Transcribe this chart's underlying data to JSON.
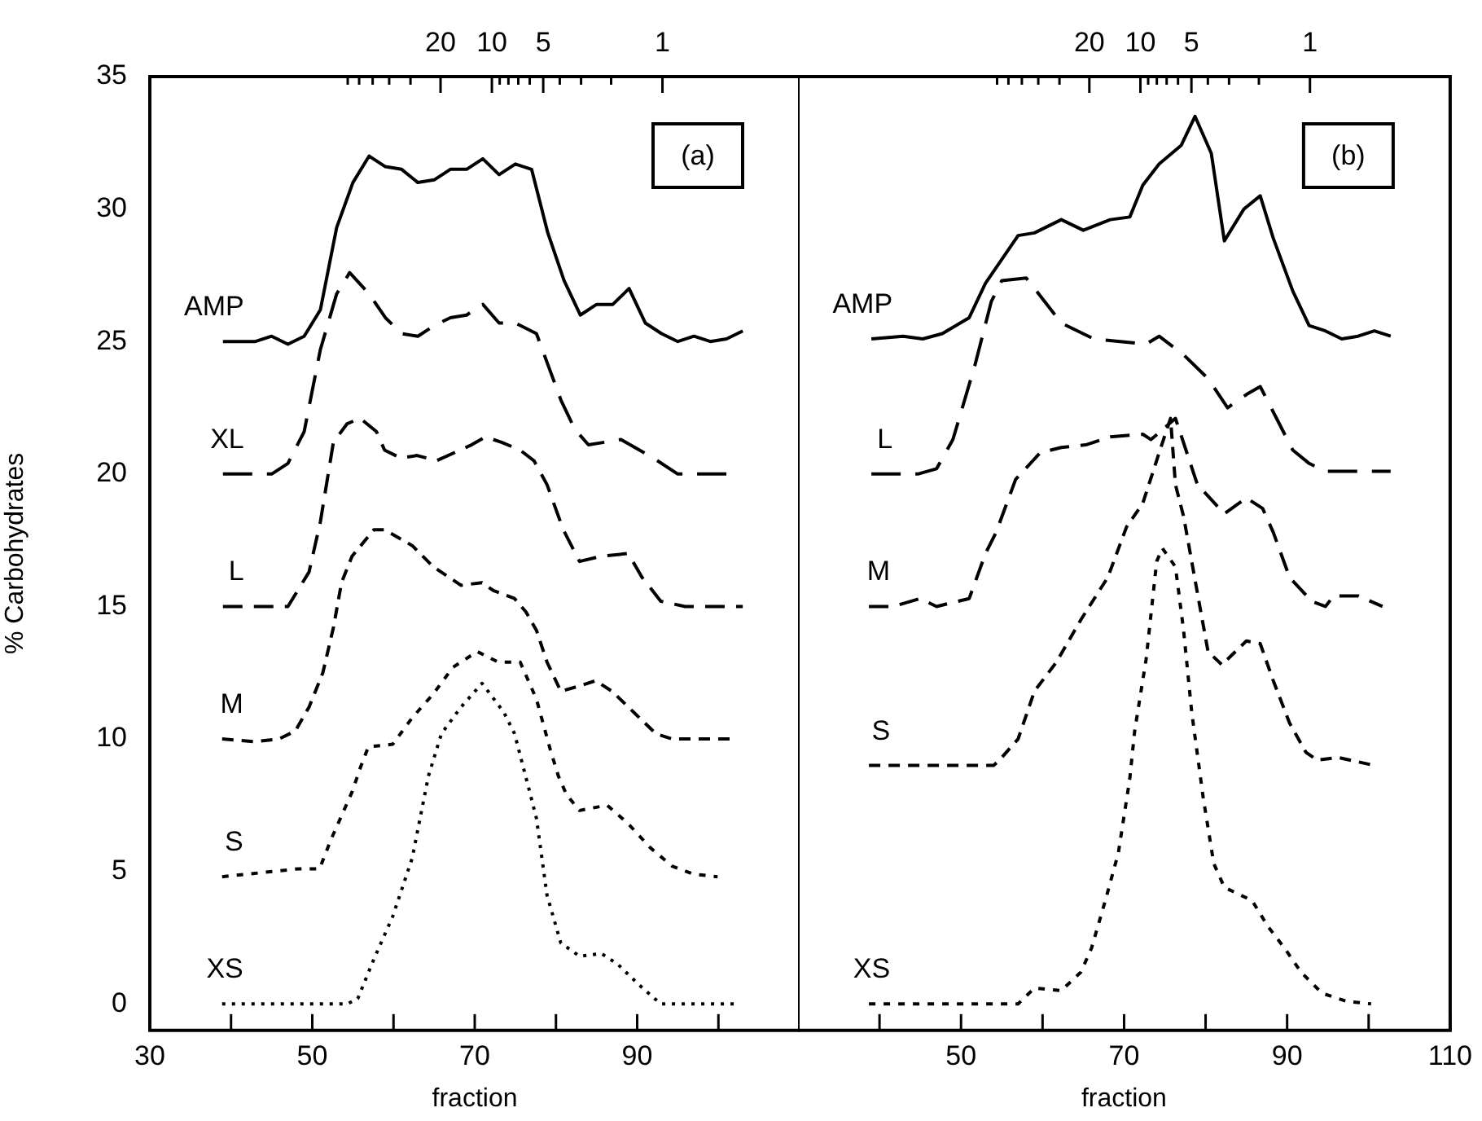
{
  "chart_data": [
    {
      "type": "line",
      "xlabel": "fraction",
      "ylabel": "% Carbohydrates",
      "annotations": [
        "(a)"
      ],
      "marker": "none",
      "xlim": [
        30,
        110
      ],
      "ylim": [
        -1,
        35
      ],
      "xticks": [
        30,
        {
          "value": 40,
          "label": null
        },
        50,
        {
          "value": 60,
          "label": null
        },
        70,
        {
          "value": 80,
          "label": null
        },
        90,
        {
          "value": 100,
          "label": null
        }
      ],
      "yticks": [
        0,
        5,
        10,
        15,
        20,
        25,
        30,
        35
      ],
      "log": "x2",
      "x2lim": [
        1012,
        0.157
      ],
      "x2ticks": [
        {
          "value": 70,
          "label": null
        },
        {
          "value": 60,
          "label": null
        },
        {
          "value": 50,
          "label": null
        },
        {
          "value": 40,
          "label": null
        },
        {
          "value": 30,
          "label": null
        },
        20,
        10,
        {
          "value": 9,
          "label": null
        },
        {
          "value": 8,
          "label": null
        },
        {
          "value": 7,
          "label": null
        },
        {
          "value": 6,
          "label": null
        },
        5,
        {
          "value": 4,
          "label": null
        },
        {
          "value": 3,
          "label": null
        },
        {
          "value": 2,
          "label": null
        },
        1
      ],
      "series": [
        {
          "name": "AMP",
          "color": "#000000",
          "line_style": "solid",
          "x": [
            39,
            43,
            45,
            47,
            49,
            51,
            53,
            55,
            57,
            59,
            61,
            63,
            65,
            67,
            69,
            71,
            73,
            75,
            77,
            79,
            81,
            83,
            85,
            87,
            89,
            91,
            93,
            95,
            97,
            99,
            101,
            103
          ],
          "values": [
            25.0,
            25.0,
            25.2,
            24.9,
            25.2,
            26.2,
            29.3,
            31.0,
            32.0,
            31.6,
            31.5,
            31.0,
            31.1,
            31.5,
            31.5,
            31.9,
            31.3,
            31.7,
            31.5,
            29.1,
            27.3,
            26.0,
            26.4,
            26.4,
            27.0,
            25.7,
            25.3,
            25.0,
            25.2,
            25.0,
            25.1,
            25.4
          ]
        },
        {
          "name": "XL",
          "color": "#000000",
          "line_style": "dashed",
          "x": [
            39,
            45,
            47,
            49,
            51,
            53,
            54.6,
            57,
            59,
            61,
            63,
            65,
            67,
            69,
            71,
            73,
            75,
            77.6,
            80.6,
            82.3,
            84,
            88,
            92,
            95,
            101
          ],
          "values": [
            20.0,
            20.0,
            20.4,
            21.6,
            24.7,
            26.8,
            27.6,
            26.8,
            25.9,
            25.3,
            25.2,
            25.6,
            25.9,
            26.0,
            26.4,
            25.7,
            25.7,
            25.3,
            22.8,
            21.7,
            21.1,
            21.3,
            20.6,
            20.0,
            20.0
          ]
        },
        {
          "name": "L",
          "color": "#000000",
          "line_style": "dashed",
          "x": [
            39,
            47,
            49.6,
            51,
            52.6,
            54.3,
            55.9,
            57.9,
            58.9,
            60.9,
            62.9,
            65.3,
            69.6,
            71.3,
            73.3,
            75.6,
            77.3,
            78.9,
            80.9,
            82.9,
            85.6,
            88.9,
            90.6,
            92.9,
            95.9,
            103
          ],
          "values": [
            15.0,
            15.0,
            16.3,
            18.2,
            21.2,
            21.9,
            22.1,
            21.6,
            20.9,
            20.6,
            20.7,
            20.5,
            21.1,
            21.4,
            21.2,
            20.9,
            20.5,
            19.6,
            17.9,
            16.7,
            16.9,
            17.0,
            16.1,
            15.2,
            15.0,
            15.0
          ]
        },
        {
          "name": "M",
          "color": "#000000",
          "line_style": "dashed",
          "x": [
            38.9,
            42.9,
            45.9,
            47.9,
            49.6,
            51.3,
            52.6,
            53.6,
            54.9,
            57.6,
            58.9,
            62.3,
            64.9,
            68.3,
            70.9,
            72.3,
            74.9,
            76.3,
            77.6,
            78.9,
            80.6,
            82.9,
            84.9,
            86.9,
            89.6,
            92.3,
            94.3,
            101.6
          ],
          "values": [
            10.0,
            9.9,
            10.0,
            10.3,
            11.2,
            12.5,
            14.2,
            15.9,
            16.9,
            17.9,
            17.9,
            17.3,
            16.5,
            15.8,
            15.9,
            15.6,
            15.3,
            14.8,
            14.1,
            12.9,
            11.8,
            12.0,
            12.2,
            11.8,
            11.0,
            10.2,
            10.0,
            10.0
          ]
        },
        {
          "name": "S",
          "color": "#000000",
          "line_style": "dotted",
          "x": [
            38.9,
            48.3,
            50.9,
            52.3,
            54.9,
            55.9,
            56.9,
            59.9,
            62.3,
            64.9,
            67.3,
            70.3,
            72.9,
            75.6,
            77.6,
            79.3,
            80.3,
            81.3,
            82.9,
            86.3,
            88.9,
            91.6,
            94.3,
            96.9,
            99.9
          ],
          "values": [
            4.8,
            5.1,
            5.1,
            6.2,
            8.0,
            8.9,
            9.7,
            9.8,
            10.8,
            11.7,
            12.7,
            13.3,
            12.9,
            12.9,
            11.5,
            9.6,
            8.6,
            7.9,
            7.3,
            7.5,
            6.8,
            5.9,
            5.2,
            4.9,
            4.8
          ]
        },
        {
          "name": "XS",
          "color": "#000000",
          "line_style": "dotted",
          "x": [
            38.9,
            54.3,
            55.6,
            57.6,
            59.9,
            62.3,
            64.3,
            65.9,
            68.3,
            70.9,
            73.6,
            74.9,
            76.6,
            77.6,
            78.9,
            80.6,
            82.9,
            85.6,
            87.6,
            90.3,
            92.9,
            101.9
          ],
          "values": [
            0.0,
            0.0,
            0.2,
            1.7,
            3.3,
            5.5,
            8.6,
            10.2,
            11.2,
            12.1,
            11.0,
            10.2,
            8.2,
            7.0,
            4.1,
            2.3,
            1.8,
            1.9,
            1.5,
            0.7,
            0.0,
            0.0
          ]
        }
      ]
    },
    {
      "type": "line",
      "xlabel": "fraction",
      "annotations": [
        "(b)"
      ],
      "marker": "none",
      "tick_labels": "x",
      "xlim": [
        30,
        110
      ],
      "ylim": [
        -1,
        35
      ],
      "xticks": [
        {
          "value": 40,
          "label": null
        },
        50,
        {
          "value": 60,
          "label": null
        },
        70,
        {
          "value": 80,
          "label": null
        },
        90,
        {
          "value": 100,
          "label": null
        },
        110
      ],
      "log": "x2",
      "x2lim": [
        1045,
        0.149
      ],
      "x2ticks": [
        {
          "value": 70,
          "label": null
        },
        {
          "value": 60,
          "label": null
        },
        {
          "value": 50,
          "label": null
        },
        {
          "value": 40,
          "label": null
        },
        {
          "value": 30,
          "label": null
        },
        20,
        10,
        {
          "value": 9,
          "label": null
        },
        {
          "value": 8,
          "label": null
        },
        {
          "value": 7,
          "label": null
        },
        {
          "value": 6,
          "label": null
        },
        5,
        {
          "value": 4,
          "label": null
        },
        {
          "value": 3,
          "label": null
        },
        {
          "value": 2,
          "label": null
        },
        1
      ],
      "series": [
        {
          "name": "AMP",
          "color": "#000000",
          "line_style": "solid",
          "x": [
            39.0,
            42.9,
            45.3,
            47.7,
            51.0,
            53.0,
            57.0,
            59.0,
            62.3,
            65.0,
            68.3,
            70.7,
            72.3,
            74.3,
            77.0,
            78.7,
            80.7,
            82.3,
            84.7,
            86.7,
            88.3,
            90.7,
            92.7,
            94.7,
            96.7,
            98.7,
            100.7,
            102.7
          ],
          "values": [
            25.1,
            25.2,
            25.1,
            25.3,
            25.9,
            27.2,
            29.0,
            29.1,
            29.6,
            29.2,
            29.6,
            29.7,
            30.9,
            31.7,
            32.4,
            33.5,
            32.1,
            28.8,
            30.0,
            30.5,
            28.9,
            26.9,
            25.6,
            25.4,
            25.1,
            25.2,
            25.4,
            25.2
          ]
        },
        {
          "name": "L",
          "color": "#000000",
          "line_style": "dashed",
          "x": [
            39.0,
            44.7,
            47.0,
            49.0,
            51.7,
            53.7,
            55.0,
            58.0,
            62.3,
            66.3,
            72.7,
            74.3,
            77.3,
            80.3,
            82.7,
            85.0,
            86.7,
            88.7,
            90.7,
            92.7,
            94.7,
            102.7
          ],
          "values": [
            20.0,
            20.0,
            20.2,
            21.3,
            24.1,
            26.5,
            27.3,
            27.4,
            25.7,
            25.1,
            24.9,
            25.2,
            24.5,
            23.6,
            22.5,
            23.0,
            23.3,
            22.1,
            20.9,
            20.4,
            20.1,
            20.1
          ]
        },
        {
          "name": "M",
          "color": "#000000",
          "line_style": "dashed",
          "x": [
            38.7,
            41.7,
            45.0,
            47.0,
            51.0,
            53.0,
            54.3,
            56.7,
            59.7,
            62.3,
            65.3,
            68.3,
            72.3,
            73.3,
            76.3,
            79.0,
            82.3,
            85.0,
            87.0,
            88.3,
            90.3,
            93.0,
            94.7,
            95.7,
            98.7,
            101.7
          ],
          "values": [
            15.0,
            15.0,
            15.3,
            15.0,
            15.3,
            17.0,
            17.8,
            19.8,
            20.8,
            21.0,
            21.1,
            21.4,
            21.5,
            21.3,
            22.1,
            19.6,
            18.5,
            19.1,
            18.7,
            17.8,
            16.1,
            15.2,
            15.0,
            15.4,
            15.4,
            15.0
          ]
        },
        {
          "name": "S",
          "color": "#000000",
          "line_style": "dashed",
          "x": [
            38.7,
            54.0,
            55.0,
            57.0,
            59.0,
            61.7,
            64.7,
            68.0,
            70.3,
            72.3,
            74.3,
            75.7,
            76.3,
            77.3,
            79.0,
            80.3,
            82.0,
            85.0,
            86.7,
            88.3,
            90.3,
            92.3,
            93.7,
            96.3,
            100.7
          ],
          "values": [
            9.0,
            9.0,
            9.3,
            10.0,
            11.8,
            12.9,
            14.5,
            16.1,
            18.0,
            18.9,
            20.8,
            22.1,
            19.6,
            18.4,
            15.5,
            13.3,
            12.8,
            13.7,
            13.6,
            12.2,
            10.6,
            9.5,
            9.2,
            9.3,
            9.0
          ]
        },
        {
          "name": "XS",
          "color": "#000000",
          "line_style": "dotted",
          "x": [
            38.7,
            57.0,
            59.0,
            62.3,
            64.7,
            66.0,
            67.7,
            69.3,
            70.7,
            71.3,
            72.7,
            74.0,
            74.7,
            76.3,
            77.3,
            78.3,
            79.7,
            81.0,
            82.3,
            85.7,
            87.7,
            89.7,
            91.7,
            94.3,
            97.3,
            100.3
          ],
          "values": [
            0.0,
            0.0,
            0.6,
            0.5,
            1.2,
            2.1,
            3.9,
            5.7,
            8.5,
            10.3,
            13.0,
            16.7,
            17.2,
            16.5,
            14.1,
            11.0,
            7.8,
            5.3,
            4.4,
            3.9,
            2.9,
            2.1,
            1.2,
            0.4,
            0.1,
            0.0
          ]
        }
      ]
    }
  ]
}
